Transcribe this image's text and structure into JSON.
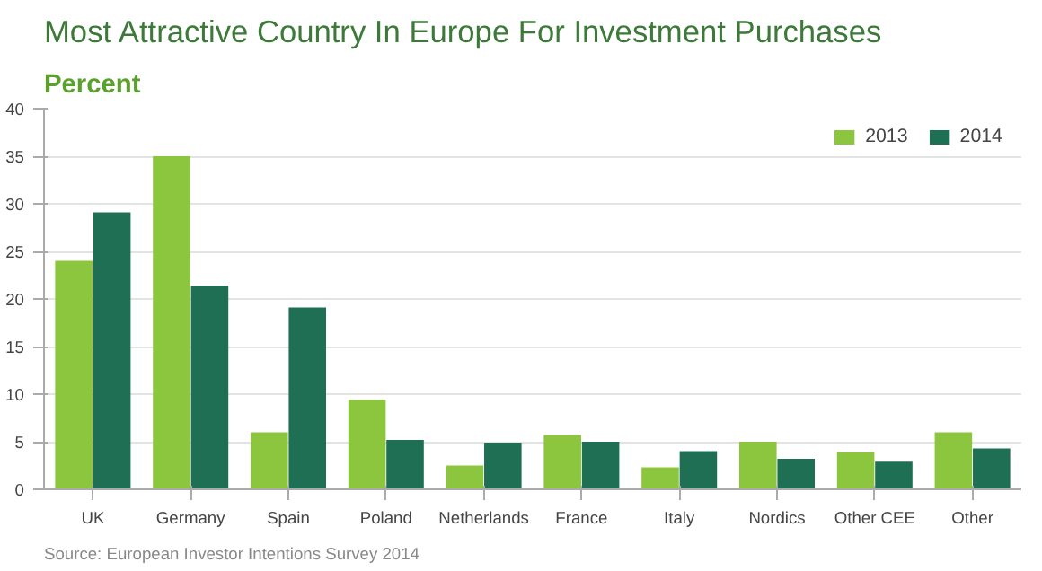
{
  "chart_data": {
    "type": "bar",
    "title": "Most Attractive Country In Europe For Investment Purchases",
    "ylabel": "Percent",
    "categories": [
      "UK",
      "Germany",
      "Spain",
      "Poland",
      "Netherlands",
      "France",
      "Italy",
      "Nordics",
      "Other CEE",
      "Other"
    ],
    "series": [
      {
        "name": "2013",
        "color": "#8cc63f",
        "values": [
          24.0,
          35.0,
          6.0,
          9.4,
          2.5,
          5.7,
          2.3,
          5.0,
          3.9,
          6.0
        ]
      },
      {
        "name": "2014",
        "color": "#1f6f54",
        "values": [
          29.1,
          21.4,
          19.1,
          5.2,
          4.9,
          5.0,
          4.0,
          3.2,
          2.9,
          4.3
        ]
      }
    ],
    "ylim": [
      0,
      40
    ],
    "yticks": [
      0,
      5,
      10,
      15,
      20,
      25,
      30,
      35,
      40
    ],
    "grid": "y",
    "legend": "top right",
    "annotations": [
      "Source: European Investor Intentions Survey 2014"
    ]
  }
}
